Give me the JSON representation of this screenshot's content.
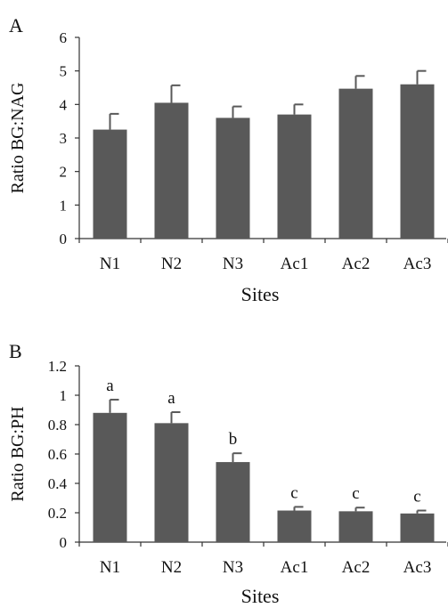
{
  "chart_data": [
    {
      "panel": "A",
      "type": "bar",
      "categories": [
        "N1",
        "N2",
        "N3",
        "Ac1",
        "Ac2",
        "Ac3"
      ],
      "values": [
        3.25,
        4.05,
        3.6,
        3.7,
        4.47,
        4.6
      ],
      "errors": [
        0.47,
        0.52,
        0.34,
        0.3,
        0.38,
        0.4
      ],
      "ylabel": "Ratio BG:NAG",
      "xlabel": "Sites",
      "ylim": [
        0,
        6
      ],
      "yticks": [
        0,
        1,
        2,
        3,
        4,
        5,
        6
      ],
      "ytick_labels": [
        "0",
        "1",
        "2",
        "3",
        "4",
        "5",
        "6"
      ],
      "grid": false,
      "bar_color": "#595959"
    },
    {
      "panel": "B",
      "type": "bar",
      "categories": [
        "N1",
        "N2",
        "N3",
        "Ac1",
        "Ac2",
        "Ac3"
      ],
      "values": [
        0.88,
        0.81,
        0.545,
        0.215,
        0.21,
        0.195
      ],
      "errors": [
        0.09,
        0.075,
        0.06,
        0.025,
        0.025,
        0.02
      ],
      "annotations": [
        "a",
        "a",
        "b",
        "c",
        "c",
        "c"
      ],
      "ylabel": "Ratio BG:PH",
      "xlabel": "Sites",
      "ylim": [
        0,
        1.2
      ],
      "yticks": [
        0,
        0.2,
        0.4,
        0.6,
        0.8,
        1,
        1.2
      ],
      "ytick_labels": [
        "0",
        "0.2",
        "0.4",
        "0.6",
        "0.8",
        "1",
        "1.2"
      ],
      "grid": false,
      "bar_color": "#595959"
    }
  ]
}
